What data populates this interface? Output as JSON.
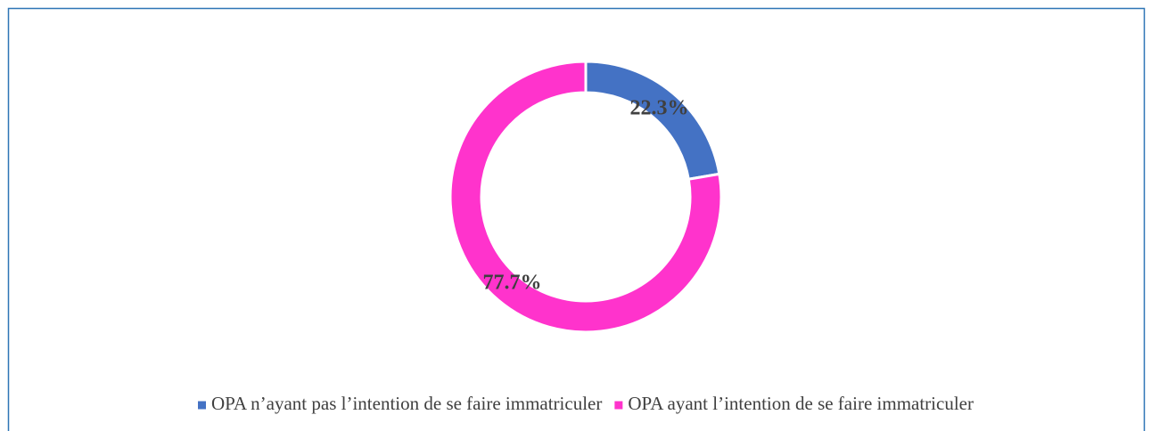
{
  "chart_data": {
    "type": "donut",
    "categories": [
      "OPA n’ayant pas l’intention de se faire immatriculer",
      "OPA ayant l’intention de se faire immatriculer"
    ],
    "values": [
      22.3,
      77.7
    ],
    "value_labels": [
      "22.3%",
      "77.7%"
    ],
    "colors": [
      "#4472c4",
      "#ff33cc"
    ],
    "legend": "bottom"
  }
}
